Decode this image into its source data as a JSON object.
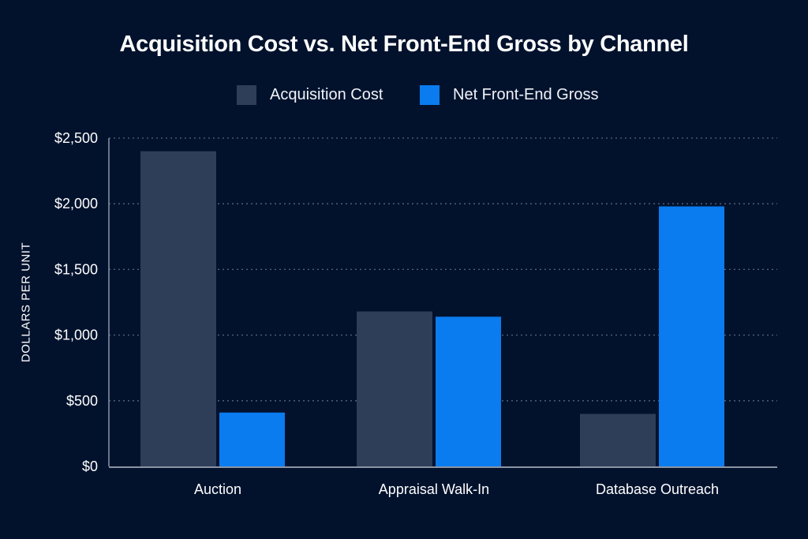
{
  "chart_data": {
    "type": "bar",
    "title": "Acquisition Cost vs. Net Front-End Gross by Channel",
    "xlabel": "",
    "ylabel": "DOLLARS PER UNIT",
    "categories": [
      "Auction",
      "Appraisal Walk-In",
      "Database Outreach"
    ],
    "series": [
      {
        "name": "Acquisition Cost",
        "values": [
          2400,
          1180,
          400
        ],
        "color": "#2e3d58"
      },
      {
        "name": "Net Front-End Gross",
        "values": [
          410,
          1140,
          1980
        ],
        "color": "#0a7cf0"
      }
    ],
    "ylim": [
      0,
      2500
    ],
    "yticks": [
      0,
      500,
      1000,
      1500,
      2000,
      2500
    ],
    "ytick_labels": [
      "$0",
      "$500",
      "$1,000",
      "$1,500",
      "$2,000",
      "$2,500"
    ],
    "grid": true,
    "legend_position": "top-center",
    "background": "#02122d"
  }
}
